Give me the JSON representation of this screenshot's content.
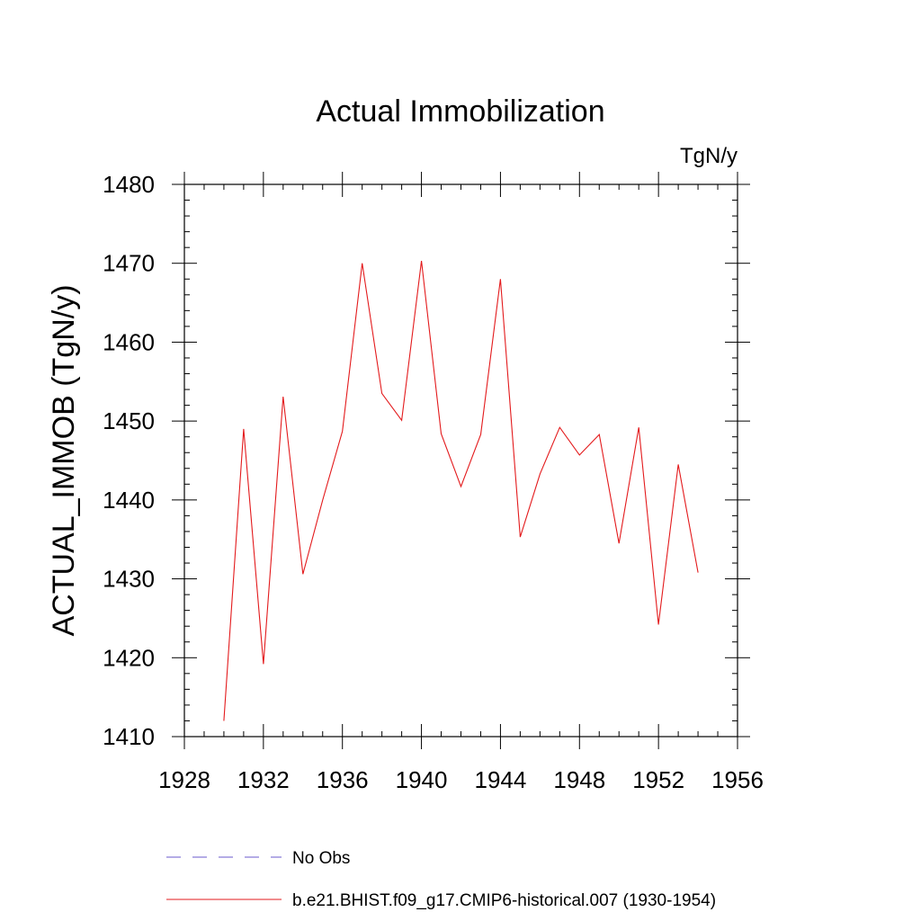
{
  "chart_data": {
    "type": "line",
    "title": "Actual Immobilization",
    "units": "TgN/y",
    "ylabel": "ACTUAL_IMMOB  (TgN/y)",
    "xlabel": "",
    "xlim": [
      1928,
      1956
    ],
    "ylim": [
      1410,
      1480
    ],
    "xticks": [
      1928,
      1932,
      1936,
      1940,
      1944,
      1948,
      1952,
      1956
    ],
    "yticks": [
      1410,
      1420,
      1430,
      1440,
      1450,
      1460,
      1470,
      1480
    ],
    "series": [
      {
        "name": "b.e21.BHIST.f09_g17.CMIP6-historical.007 (1930-1954)",
        "color": "#e31a1c",
        "style": "solid",
        "x": [
          1930,
          1931,
          1932,
          1933,
          1934,
          1935,
          1936,
          1937,
          1938,
          1939,
          1940,
          1941,
          1942,
          1943,
          1944,
          1945,
          1946,
          1947,
          1948,
          1949,
          1950,
          1951,
          1952,
          1953,
          1954
        ],
        "y": [
          1412.0,
          1449.0,
          1419.2,
          1453.1,
          1430.6,
          1440.0,
          1448.7,
          1470.0,
          1453.5,
          1450.1,
          1470.3,
          1448.4,
          1441.7,
          1448.3,
          1468.0,
          1435.3,
          1443.3,
          1449.2,
          1445.7,
          1448.3,
          1434.5,
          1449.2,
          1424.2,
          1444.5,
          1430.8
        ]
      }
    ],
    "legend": [
      {
        "label": "No Obs",
        "color": "#6a5acd",
        "style": "dashed"
      },
      {
        "label": "b.e21.BHIST.f09_g17.CMIP6-historical.007 (1930-1954)",
        "color": "#e31a1c",
        "style": "solid"
      }
    ]
  }
}
